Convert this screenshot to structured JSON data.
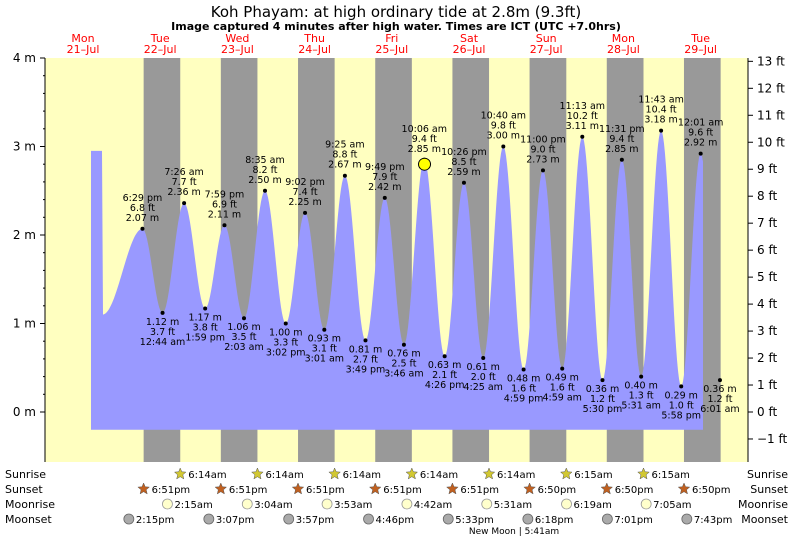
{
  "header": {
    "title": "Koh Phayam: at high  ordinary tide at 2.8m (9.3ft)",
    "subtitle": "Image captured 4 minutes after high water. Times are ICT (UTC +7.0hrs)"
  },
  "days": [
    {
      "name": "Mon",
      "date": "21–Jul"
    },
    {
      "name": "Tue",
      "date": "22–Jul"
    },
    {
      "name": "Wed",
      "date": "23–Jul"
    },
    {
      "name": "Thu",
      "date": "24–Jul"
    },
    {
      "name": "Fri",
      "date": "25–Jul"
    },
    {
      "name": "Sat",
      "date": "26–Jul"
    },
    {
      "name": "Sun",
      "date": "27–Jul"
    },
    {
      "name": "Mon",
      "date": "28–Jul"
    },
    {
      "name": "Tue",
      "date": "29–Jul"
    }
  ],
  "chart_data": {
    "type": "area",
    "title": "Koh Phayam: at high  ordinary tide at 2.8m (9.3ft)",
    "y_left_unit": "m",
    "y_right_unit": "ft",
    "ylim_m": [
      -0.2,
      4.0
    ],
    "y_ticks_m": [
      "4 m",
      "3 m",
      "2 m",
      "1 m",
      "0 m"
    ],
    "y_ticks_ft": [
      "13 ft",
      "12 ft",
      "11 ft",
      "10 ft",
      "9 ft",
      "8 ft",
      "7 ft",
      "6 ft",
      "5 ft",
      "4 ft",
      "3 ft",
      "2 ft",
      "1 ft",
      "0 ft",
      "−1 ft"
    ],
    "colors": {
      "water": "#9999ff",
      "day": "#ffffc0",
      "night": "#999999",
      "current_marker": "#ffff00",
      "sun": "#d2c832",
      "sunset": "#c06020"
    },
    "current": {
      "height_m": 2.8,
      "day": 4,
      "hour": 10.17
    },
    "extremes": [
      {
        "type": "high",
        "day": 0,
        "hour": 18.48,
        "time": "6:29 pm",
        "ft": "6.8 ft",
        "m": "2.07 m",
        "value": 2.07
      },
      {
        "type": "low",
        "day": 1,
        "hour": 0.73,
        "time": "12:44 am",
        "ft": "3.7 ft",
        "m": "1.12 m",
        "value": 1.12
      },
      {
        "type": "high",
        "day": 1,
        "hour": 7.43,
        "time": "7:26 am",
        "ft": "7.7 ft",
        "m": "2.36 m",
        "value": 2.36
      },
      {
        "type": "low",
        "day": 1,
        "hour": 13.98,
        "time": "1:59 pm",
        "ft": "3.8 ft",
        "m": "1.17 m",
        "value": 1.17
      },
      {
        "type": "high",
        "day": 1,
        "hour": 19.98,
        "time": "7:59 pm",
        "ft": "6.9 ft",
        "m": "2.11 m",
        "value": 2.11
      },
      {
        "type": "low",
        "day": 2,
        "hour": 2.05,
        "time": "2:03 am",
        "ft": "3.5 ft",
        "m": "1.06 m",
        "value": 1.06
      },
      {
        "type": "high",
        "day": 2,
        "hour": 8.58,
        "time": "8:35 am",
        "ft": "8.2 ft",
        "m": "2.50 m",
        "value": 2.5
      },
      {
        "type": "low",
        "day": 2,
        "hour": 15.03,
        "time": "3:02 pm",
        "ft": "3.3 ft",
        "m": "1.00 m",
        "value": 1.0
      },
      {
        "type": "high",
        "day": 2,
        "hour": 21.03,
        "time": "9:02 pm",
        "ft": "7.4 ft",
        "m": "2.25 m",
        "value": 2.25
      },
      {
        "type": "low",
        "day": 3,
        "hour": 3.02,
        "time": "3:01 am",
        "ft": "3.1 ft",
        "m": "0.93 m",
        "value": 0.93
      },
      {
        "type": "high",
        "day": 3,
        "hour": 9.42,
        "time": "9:25 am",
        "ft": "8.8 ft",
        "m": "2.67 m",
        "value": 2.67
      },
      {
        "type": "low",
        "day": 3,
        "hour": 15.82,
        "time": "3:49 pm",
        "ft": "2.7 ft",
        "m": "0.81 m",
        "value": 0.81
      },
      {
        "type": "high",
        "day": 3,
        "hour": 21.82,
        "time": "9:49 pm",
        "ft": "7.9 ft",
        "m": "2.42 m",
        "value": 2.42
      },
      {
        "type": "low",
        "day": 4,
        "hour": 3.77,
        "time": "3:46 am",
        "ft": "2.5 ft",
        "m": "0.76 m",
        "value": 0.76
      },
      {
        "type": "high",
        "day": 4,
        "hour": 10.1,
        "time": "10:06 am",
        "ft": "9.4 ft",
        "m": "2.85 m",
        "value": 2.85
      },
      {
        "type": "low",
        "day": 4,
        "hour": 16.43,
        "time": "4:26 pm",
        "ft": "2.1 ft",
        "m": "0.63 m",
        "value": 0.63
      },
      {
        "type": "high",
        "day": 4,
        "hour": 22.43,
        "time": "10:26 pm",
        "ft": "8.5 ft",
        "m": "2.59 m",
        "value": 2.59
      },
      {
        "type": "low",
        "day": 5,
        "hour": 4.42,
        "time": "4:25 am",
        "ft": "2.0 ft",
        "m": "0.61 m",
        "value": 0.61
      },
      {
        "type": "high",
        "day": 5,
        "hour": 10.67,
        "time": "10:40 am",
        "ft": "9.8 ft",
        "m": "3.00 m",
        "value": 3.0
      },
      {
        "type": "low",
        "day": 5,
        "hour": 16.98,
        "time": "4:59 pm",
        "ft": "1.6 ft",
        "m": "0.48 m",
        "value": 0.48
      },
      {
        "type": "high",
        "day": 5,
        "hour": 23.0,
        "time": "11:00 pm",
        "ft": "9.0 ft",
        "m": "2.73 m",
        "value": 2.73
      },
      {
        "type": "low",
        "day": 6,
        "hour": 4.98,
        "time": "4:59 am",
        "ft": "1.6 ft",
        "m": "0.49 m",
        "value": 0.49
      },
      {
        "type": "high",
        "day": 6,
        "hour": 11.22,
        "time": "11:13 am",
        "ft": "10.2 ft",
        "m": "3.11 m",
        "value": 3.11
      },
      {
        "type": "low",
        "day": 6,
        "hour": 17.5,
        "time": "5:30 pm",
        "ft": "1.2 ft",
        "m": "0.36 m",
        "value": 0.36
      },
      {
        "type": "high",
        "day": 6,
        "hour": 23.52,
        "time": "11:31 pm",
        "ft": "9.4 ft",
        "m": "2.85 m",
        "value": 2.85
      },
      {
        "type": "low",
        "day": 7,
        "hour": 5.52,
        "time": "5:31 am",
        "ft": "1.3 ft",
        "m": "0.40 m",
        "value": 0.4
      },
      {
        "type": "high",
        "day": 7,
        "hour": 11.72,
        "time": "11:43 am",
        "ft": "10.4 ft",
        "m": "3.18 m",
        "value": 3.18
      },
      {
        "type": "low",
        "day": 7,
        "hour": 17.97,
        "time": "5:58 pm",
        "ft": "1.0 ft",
        "m": "0.29 m",
        "value": 0.29
      },
      {
        "type": "high",
        "day": 8,
        "hour": 0.02,
        "time": "12:01 am",
        "ft": "9.6 ft",
        "m": "2.92 m",
        "value": 2.92
      },
      {
        "type": "low",
        "day": 8,
        "hour": 6.02,
        "time": "6:01 am",
        "ft": "1.2 ft",
        "m": "0.36 m",
        "value": 0.36
      }
    ]
  },
  "rows": {
    "sunrise_label": "Sunrise",
    "sunset_label": "Sunset",
    "moonrise_label": "Moonrise",
    "moonset_label": "Moonset"
  },
  "events": {
    "sunrise": [
      {
        "day": 1,
        "hour": 6.23,
        "text": "6:14am"
      },
      {
        "day": 2,
        "hour": 6.23,
        "text": "6:14am"
      },
      {
        "day": 3,
        "hour": 6.23,
        "text": "6:14am"
      },
      {
        "day": 4,
        "hour": 6.23,
        "text": "6:14am"
      },
      {
        "day": 5,
        "hour": 6.23,
        "text": "6:14am"
      },
      {
        "day": 6,
        "hour": 6.25,
        "text": "6:15am"
      },
      {
        "day": 7,
        "hour": 6.25,
        "text": "6:15am"
      }
    ],
    "sunset": [
      {
        "day": 0,
        "hour": 18.85,
        "text": "6:51pm"
      },
      {
        "day": 1,
        "hour": 18.85,
        "text": "6:51pm"
      },
      {
        "day": 2,
        "hour": 18.85,
        "text": "6:51pm"
      },
      {
        "day": 3,
        "hour": 18.85,
        "text": "6:51pm"
      },
      {
        "day": 4,
        "hour": 18.85,
        "text": "6:51pm"
      },
      {
        "day": 5,
        "hour": 18.83,
        "text": "6:50pm"
      },
      {
        "day": 6,
        "hour": 18.83,
        "text": "6:50pm"
      },
      {
        "day": 7,
        "hour": 18.83,
        "text": "6:50pm"
      }
    ],
    "moonrise": [
      {
        "day": 1,
        "hour": 2.25,
        "text": "2:15am"
      },
      {
        "day": 2,
        "hour": 3.07,
        "text": "3:04am"
      },
      {
        "day": 3,
        "hour": 3.88,
        "text": "3:53am"
      },
      {
        "day": 4,
        "hour": 4.7,
        "text": "4:42am"
      },
      {
        "day": 5,
        "hour": 5.52,
        "text": "5:31am"
      },
      {
        "day": 6,
        "hour": 6.32,
        "text": "6:19am"
      },
      {
        "day": 7,
        "hour": 7.08,
        "text": "7:05am"
      }
    ],
    "moonset": [
      {
        "day": 0,
        "hour": 14.25,
        "text": "2:15pm"
      },
      {
        "day": 1,
        "hour": 15.12,
        "text": "3:07pm"
      },
      {
        "day": 2,
        "hour": 15.95,
        "text": "3:57pm"
      },
      {
        "day": 3,
        "hour": 16.77,
        "text": "4:46pm"
      },
      {
        "day": 4,
        "hour": 17.55,
        "text": "5:33pm"
      },
      {
        "day": 5,
        "hour": 18.3,
        "text": "6:18pm"
      },
      {
        "day": 6,
        "hour": 19.02,
        "text": "7:01pm"
      },
      {
        "day": 7,
        "hour": 19.72,
        "text": "7:43pm"
      }
    ],
    "new_moon": {
      "day": 5,
      "text": "New Moon | 5:41am"
    }
  }
}
